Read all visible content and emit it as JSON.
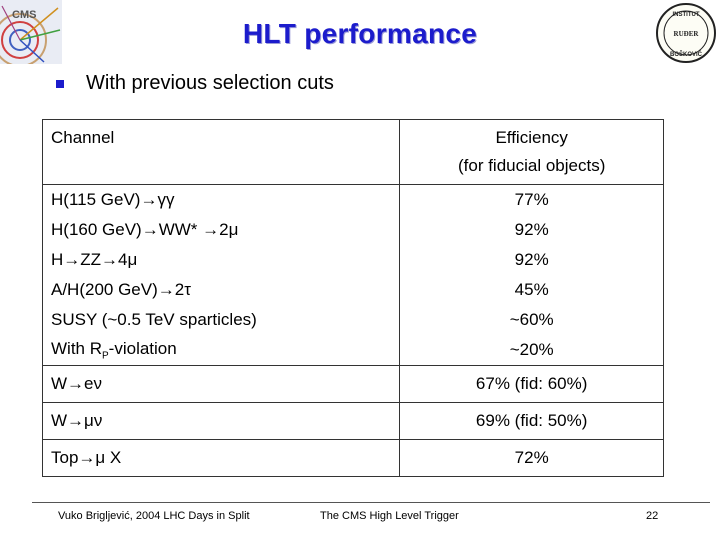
{
  "slide": {
    "title": "HLT performance",
    "bullet": "With previous selection cuts"
  },
  "table": {
    "header": {
      "channel": "Channel",
      "efficiency_line1": "Efficiency",
      "efficiency_line2": "(for fiducial objects)"
    },
    "rows": [
      {
        "channel": "H(115 GeV)→γγ",
        "efficiency": "77%"
      },
      {
        "channel": "H(160 GeV)→WW* →2μ",
        "efficiency": "92%"
      },
      {
        "channel": "H→ZZ→4μ",
        "efficiency": "92%"
      },
      {
        "channel": "A/H(200 GeV)→2τ",
        "efficiency": "45%"
      },
      {
        "channel": "SUSY (~0.5 TeV sparticles)",
        "efficiency": "~60%"
      },
      {
        "channel_prefix": "With R",
        "channel_sub": "P",
        "channel_suffix": "-violation",
        "efficiency": "~20%"
      },
      {
        "channel": "W→eν",
        "efficiency": "67% (fid: 60%)"
      },
      {
        "channel": "W→μν",
        "efficiency": "69% (fid: 50%)"
      },
      {
        "channel": "Top→μ X",
        "efficiency": "72%"
      }
    ]
  },
  "footer": {
    "author": "Vuko Brigljević, 2004 LHC Days in Split",
    "talk": "The CMS High Level Trigger",
    "page": "22"
  },
  "logos": {
    "left": "CMS",
    "right_top": "INSTITUT",
    "right_mid": "RUĐER",
    "right_bottom": "BOŠKOVIĆ"
  },
  "colors": {
    "title": "#1c1ccc",
    "bullet": "#1c1ccc"
  }
}
